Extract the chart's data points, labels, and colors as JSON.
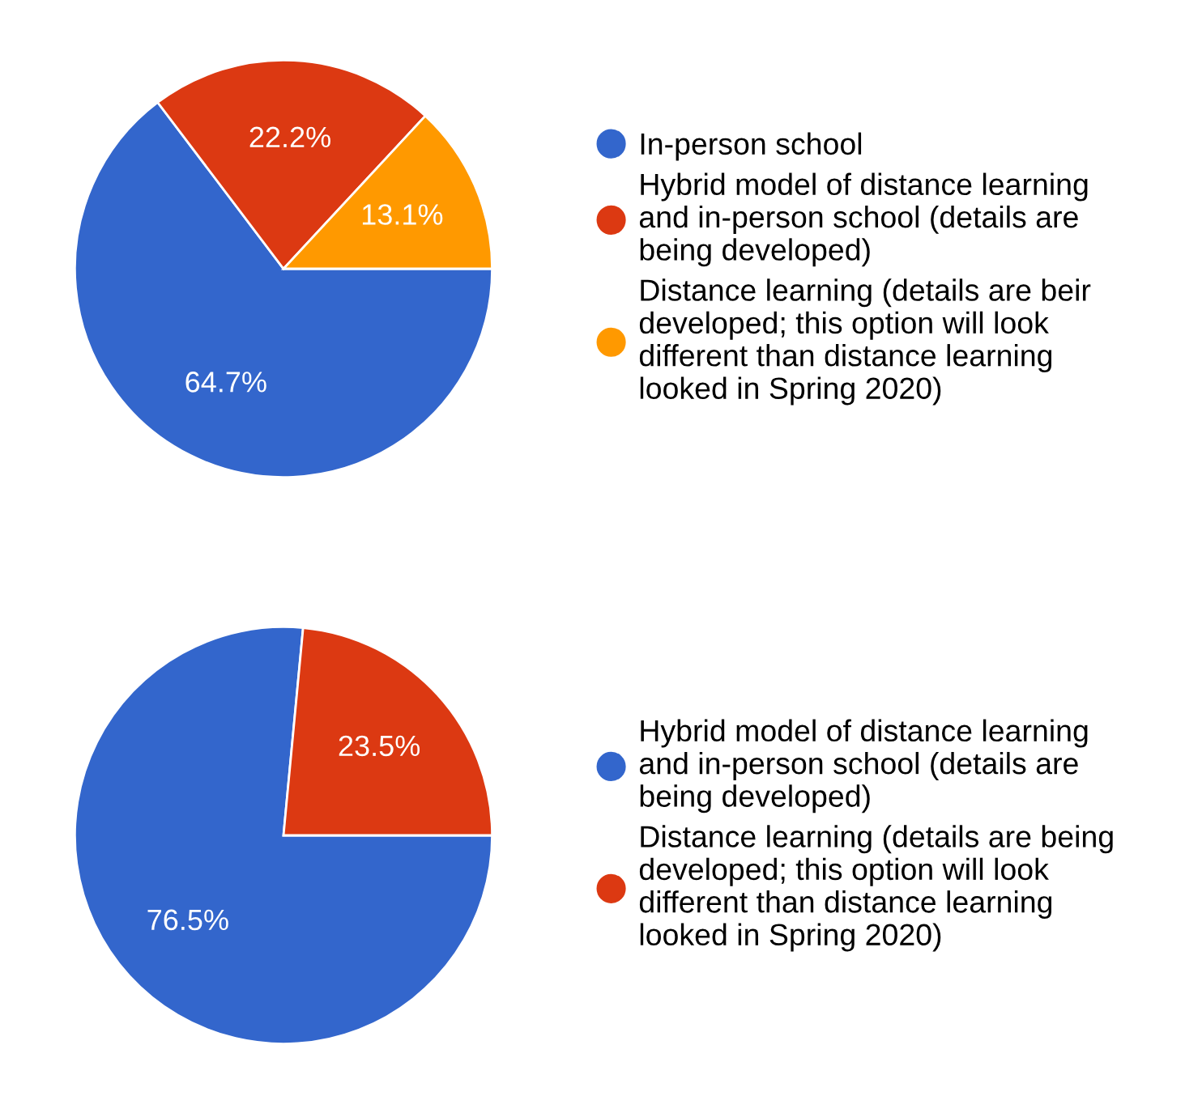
{
  "chart_data": [
    {
      "type": "pie",
      "categories": [
        "In-person school",
        "Hybrid model of distance learning\nand in-person school (details are\nbeing developed)",
        "Distance learning (details are beir\ndeveloped; this option will look\ndifferent than distance learning\nlooked in Spring 2020)"
      ],
      "values": [
        64.7,
        22.2,
        13.1
      ],
      "colors": [
        "#3366cc",
        "#dc3912",
        "#ff9900"
      ],
      "value_labels": [
        "64.7%",
        "22.2%",
        "13.1%"
      ],
      "legend": "right"
    },
    {
      "type": "pie",
      "categories": [
        "Hybrid model of distance learning\nand in-person school (details are\nbeing developed)",
        "Distance learning (details are being\ndeveloped; this option will look\ndifferent than distance learning\nlooked in Spring 2020)"
      ],
      "values": [
        76.5,
        23.5
      ],
      "colors": [
        "#3366cc",
        "#dc3912"
      ],
      "value_labels": [
        "76.5%",
        "23.5%"
      ],
      "legend": "right"
    }
  ]
}
